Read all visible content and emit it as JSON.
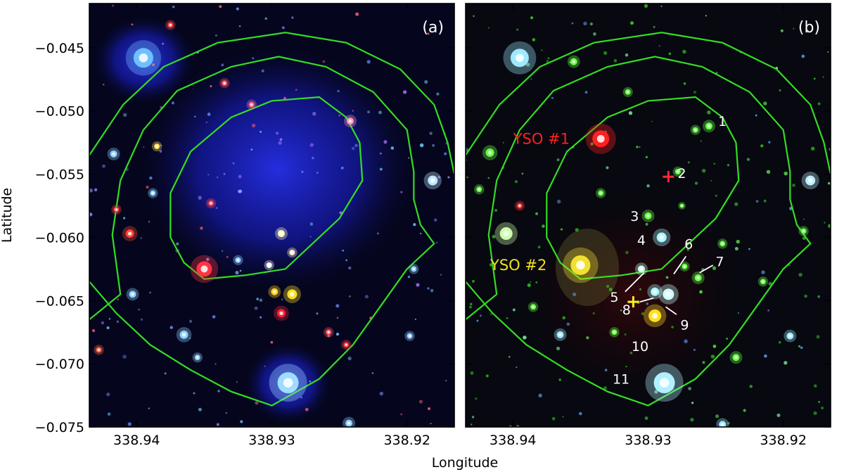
{
  "chart_data": {
    "type": "image",
    "xlabel": "Longitude",
    "ylabel": "Latitude",
    "xlim": [
      338.9435,
      338.9165
    ],
    "ylim": [
      -0.075,
      -0.0415
    ],
    "x_ticks": [
      338.94,
      338.93,
      338.92
    ],
    "x_tick_labels": [
      "338.94",
      "338.93",
      "338.92"
    ],
    "y_ticks": [
      -0.045,
      -0.05,
      -0.055,
      -0.06,
      -0.065,
      -0.07,
      -0.075
    ],
    "y_tick_labels": [
      "−0.045",
      "−0.050",
      "−0.055",
      "−0.060",
      "−0.065",
      "−0.070",
      "−0.075"
    ],
    "contour_color": "#33dd22",
    "contours": [
      [
        [
          338.9435,
          -0.0535
        ],
        [
          338.941,
          -0.0495
        ],
        [
          338.938,
          -0.0465
        ],
        [
          338.934,
          -0.0446
        ],
        [
          338.929,
          -0.0438
        ],
        [
          338.9245,
          -0.0446
        ],
        [
          338.9205,
          -0.0467
        ],
        [
          338.918,
          -0.0495
        ],
        [
          338.917,
          -0.0525
        ],
        [
          338.9165,
          -0.055
        ]
      ],
      [
        [
          338.9435,
          -0.0635
        ],
        [
          338.9415,
          -0.066
        ],
        [
          338.939,
          -0.0685
        ],
        [
          338.936,
          -0.0705
        ],
        [
          338.933,
          -0.0722
        ],
        [
          338.93,
          -0.0733
        ],
        [
          338.9265,
          -0.0712
        ],
        [
          338.924,
          -0.0685
        ],
        [
          338.922,
          -0.0655
        ],
        [
          338.92,
          -0.0625
        ],
        [
          338.918,
          -0.0605
        ],
        [
          338.919,
          -0.059
        ],
        [
          338.9195,
          -0.057
        ],
        [
          338.9195,
          -0.0548
        ],
        [
          338.92,
          -0.0515
        ],
        [
          338.9225,
          -0.0485
        ],
        [
          338.926,
          -0.0465
        ],
        [
          338.9295,
          -0.0457
        ],
        [
          338.933,
          -0.0465
        ],
        [
          338.937,
          -0.0484
        ],
        [
          338.9395,
          -0.0515
        ],
        [
          338.9412,
          -0.0555
        ],
        [
          338.9418,
          -0.0598
        ],
        [
          338.9412,
          -0.0645
        ],
        [
          338.9435,
          -0.0665
        ]
      ],
      [
        [
          338.9375,
          -0.06
        ],
        [
          338.9375,
          -0.0565
        ],
        [
          338.936,
          -0.0532
        ],
        [
          338.933,
          -0.0505
        ],
        [
          338.93,
          -0.0492
        ],
        [
          338.9265,
          -0.0489
        ],
        [
          338.9245,
          -0.0505
        ],
        [
          338.9235,
          -0.0525
        ],
        [
          338.9233,
          -0.0555
        ],
        [
          338.925,
          -0.0585
        ],
        [
          338.927,
          -0.0605
        ],
        [
          338.929,
          -0.0625
        ],
        [
          338.932,
          -0.063
        ],
        [
          338.935,
          -0.0633
        ],
        [
          338.9365,
          -0.062
        ],
        [
          338.9375,
          -0.06
        ]
      ]
    ],
    "panels": [
      {
        "tag": "(a)",
        "stars": [
          {
            "x": 338.9395,
            "y": -0.0458,
            "r": 14,
            "color": "#6fc0ff"
          },
          {
            "x": 338.9288,
            "y": -0.0715,
            "r": 15,
            "color": "#9fdcff"
          },
          {
            "x": 338.935,
            "y": -0.0625,
            "r": 11,
            "color": "#ff3344"
          },
          {
            "x": 338.9285,
            "y": -0.0645,
            "r": 7,
            "color": "#ffe020"
          },
          {
            "x": 338.9298,
            "y": -0.0643,
            "r": 5,
            "color": "#ffd020"
          },
          {
            "x": 338.9293,
            "y": -0.066,
            "r": 6,
            "color": "#ff2233"
          },
          {
            "x": 338.9293,
            "y": -0.0597,
            "r": 5,
            "color": "#ffffc0"
          },
          {
            "x": 338.9405,
            "y": -0.0597,
            "r": 6,
            "color": "#ff4433"
          },
          {
            "x": 338.9181,
            "y": -0.0555,
            "r": 7,
            "color": "#bfe8ff"
          },
          {
            "x": 338.9417,
            "y": -0.0534,
            "r": 5,
            "color": "#8fd0ff"
          },
          {
            "x": 338.9242,
            "y": -0.0508,
            "r": 5,
            "color": "#ff99bb"
          },
          {
            "x": 338.9403,
            "y": -0.0645,
            "r": 5,
            "color": "#8fd0ff"
          },
          {
            "x": 338.9325,
            "y": -0.0618,
            "r": 4,
            "color": "#8fd0ff"
          },
          {
            "x": 338.9198,
            "y": -0.0678,
            "r": 4,
            "color": "#8fd0ff"
          },
          {
            "x": 338.9365,
            "y": -0.0677,
            "r": 6,
            "color": "#8fd0ff"
          },
          {
            "x": 338.9355,
            "y": -0.0695,
            "r": 4,
            "color": "#8fd0ff"
          },
          {
            "x": 338.9243,
            "y": -0.0747,
            "r": 5,
            "color": "#8fd0ff"
          },
          {
            "x": 338.9302,
            "y": -0.0622,
            "r": 4,
            "color": "#ffffff"
          },
          {
            "x": 338.9385,
            "y": -0.0528,
            "r": 4,
            "color": "#ffdd55"
          },
          {
            "x": 338.9258,
            "y": -0.0675,
            "r": 4,
            "color": "#ff5566"
          },
          {
            "x": 338.9415,
            "y": -0.0578,
            "r": 4,
            "color": "#ff4444"
          },
          {
            "x": 338.9335,
            "y": -0.0478,
            "r": 4,
            "color": "#ff5566"
          },
          {
            "x": 338.9375,
            "y": -0.0432,
            "r": 4,
            "color": "#ff4444"
          },
          {
            "x": 338.9315,
            "y": -0.0495,
            "r": 4,
            "color": "#ff6688"
          },
          {
            "x": 338.9345,
            "y": -0.0573,
            "r": 4,
            "color": "#ff4455"
          },
          {
            "x": 338.9245,
            "y": -0.0685,
            "r": 4,
            "color": "#ff3344"
          },
          {
            "x": 338.9388,
            "y": -0.0565,
            "r": 4,
            "color": "#8fd0ff"
          },
          {
            "x": 338.9195,
            "y": -0.0625,
            "r": 4,
            "color": "#8fd0ff"
          },
          {
            "x": 338.9285,
            "y": -0.0612,
            "r": 4,
            "color": "#ffeecc"
          },
          {
            "x": 338.9428,
            "y": -0.0689,
            "r": 4,
            "color": "#ff6644"
          }
        ]
      },
      {
        "tag": "(b)",
        "stars": [
          {
            "x": 338.9395,
            "y": -0.0458,
            "r": 13,
            "color": "#9fe8ff"
          },
          {
            "x": 338.9288,
            "y": -0.0715,
            "r": 15,
            "color": "#b0f0ff"
          },
          {
            "x": 338.9335,
            "y": -0.0522,
            "r": 12,
            "color": "#ff2020"
          },
          {
            "x": 338.935,
            "y": -0.0622,
            "r": 14,
            "color": "#f0e030"
          },
          {
            "x": 338.9295,
            "y": -0.0662,
            "r": 9,
            "color": "#ffe020"
          },
          {
            "x": 338.9255,
            "y": -0.0512,
            "r": 5,
            "color": "#66ff44"
          },
          {
            "x": 338.9278,
            "y": -0.0548,
            "r": 4,
            "color": "#66ff44"
          },
          {
            "x": 338.93,
            "y": -0.0583,
            "r": 5,
            "color": "#66ff44"
          },
          {
            "x": 338.929,
            "y": -0.06,
            "r": 7,
            "color": "#aaf8ff"
          },
          {
            "x": 338.9273,
            "y": -0.0623,
            "r": 4,
            "color": "#66ff44"
          },
          {
            "x": 338.9305,
            "y": -0.0625,
            "r": 5,
            "color": "#ccffee"
          },
          {
            "x": 338.9263,
            "y": -0.0632,
            "r": 5,
            "color": "#66ff44"
          },
          {
            "x": 338.9295,
            "y": -0.0643,
            "r": 6,
            "color": "#aaf8ff"
          },
          {
            "x": 338.9285,
            "y": -0.0645,
            "r": 8,
            "color": "#ccffff"
          },
          {
            "x": 338.9405,
            "y": -0.0597,
            "r": 9,
            "color": "#ccffaa"
          },
          {
            "x": 338.918,
            "y": -0.0555,
            "r": 7,
            "color": "#bff0ff"
          },
          {
            "x": 338.9417,
            "y": -0.0533,
            "r": 6,
            "color": "#66ff44"
          },
          {
            "x": 338.9195,
            "y": -0.0678,
            "r": 5,
            "color": "#9fe8ff"
          },
          {
            "x": 338.9365,
            "y": -0.0677,
            "r": 5,
            "color": "#9fe8ff"
          },
          {
            "x": 338.9245,
            "y": -0.0748,
            "r": 5,
            "color": "#9fe8ff"
          },
          {
            "x": 338.9355,
            "y": -0.0461,
            "r": 5,
            "color": "#66ff44"
          },
          {
            "x": 338.9315,
            "y": -0.0485,
            "r": 4,
            "color": "#66ff44"
          },
          {
            "x": 338.9265,
            "y": -0.0515,
            "r": 4,
            "color": "#66ff44"
          },
          {
            "x": 338.9215,
            "y": -0.0635,
            "r": 4,
            "color": "#66ff44"
          },
          {
            "x": 338.9235,
            "y": -0.0695,
            "r": 5,
            "color": "#66ff44"
          },
          {
            "x": 338.9325,
            "y": -0.0675,
            "r": 4,
            "color": "#66ff44"
          },
          {
            "x": 338.9395,
            "y": -0.0575,
            "r": 4,
            "color": "#ff3333"
          },
          {
            "x": 338.9385,
            "y": -0.0655,
            "r": 4,
            "color": "#66ff44"
          },
          {
            "x": 338.9425,
            "y": -0.0562,
            "r": 4,
            "color": "#66ff44"
          },
          {
            "x": 338.9185,
            "y": -0.0595,
            "r": 4,
            "color": "#66ff44"
          },
          {
            "x": 338.9335,
            "y": -0.0565,
            "r": 4,
            "color": "#66ff44"
          },
          {
            "x": 338.9275,
            "y": -0.0575,
            "r": 3,
            "color": "#66ff44"
          },
          {
            "x": 338.9245,
            "y": -0.0605,
            "r": 4,
            "color": "#66ff44"
          }
        ],
        "marker_colors": {
          "red_cross": "#ff2a2a",
          "yellow_cross": "#ffee22",
          "yso1": "#ff2020",
          "yso2": "#f0e020"
        },
        "crosses": [
          {
            "name": "red-cross-marker",
            "x": 338.9285,
            "y": -0.0552,
            "color": "#ff2a2a"
          },
          {
            "name": "yellow-cross-marker",
            "x": 338.9311,
            "y": -0.0651,
            "color": "#ffee22"
          }
        ],
        "yso_labels": [
          {
            "text": "YSO #1",
            "x": 338.9358,
            "y": -0.0522,
            "color": "#ff2020"
          },
          {
            "text": "YSO #2",
            "x": 338.9375,
            "y": -0.0622,
            "color": "#f0e020"
          }
        ],
        "source_labels": [
          {
            "text": "1",
            "x": 338.9245,
            "y": -0.0508
          },
          {
            "text": "2",
            "x": 338.9275,
            "y": -0.0549
          },
          {
            "text": "3",
            "x": 338.931,
            "y": -0.0583
          },
          {
            "text": "4",
            "x": 338.9305,
            "y": -0.0602
          },
          {
            "text": "5",
            "x": 338.9325,
            "y": -0.0647
          },
          {
            "text": "6",
            "x": 338.927,
            "y": -0.0605
          },
          {
            "text": "7",
            "x": 338.9247,
            "y": -0.0619
          },
          {
            "text": "8",
            "x": 338.9316,
            "y": -0.0657
          },
          {
            "text": "9",
            "x": 338.9273,
            "y": -0.0669
          },
          {
            "text": "10",
            "x": 338.9306,
            "y": -0.0686
          },
          {
            "text": "11",
            "x": 338.932,
            "y": -0.0712
          }
        ],
        "pointers": [
          [
            338.9317,
            -0.0643,
            338.9303,
            -0.0628
          ],
          [
            338.9272,
            -0.0615,
            338.9281,
            -0.0629
          ],
          [
            338.9252,
            -0.0622,
            338.9262,
            -0.0628
          ],
          [
            338.9306,
            -0.0651,
            338.9296,
            -0.0648
          ],
          [
            338.9279,
            -0.0661,
            338.9287,
            -0.0655
          ]
        ]
      }
    ]
  }
}
